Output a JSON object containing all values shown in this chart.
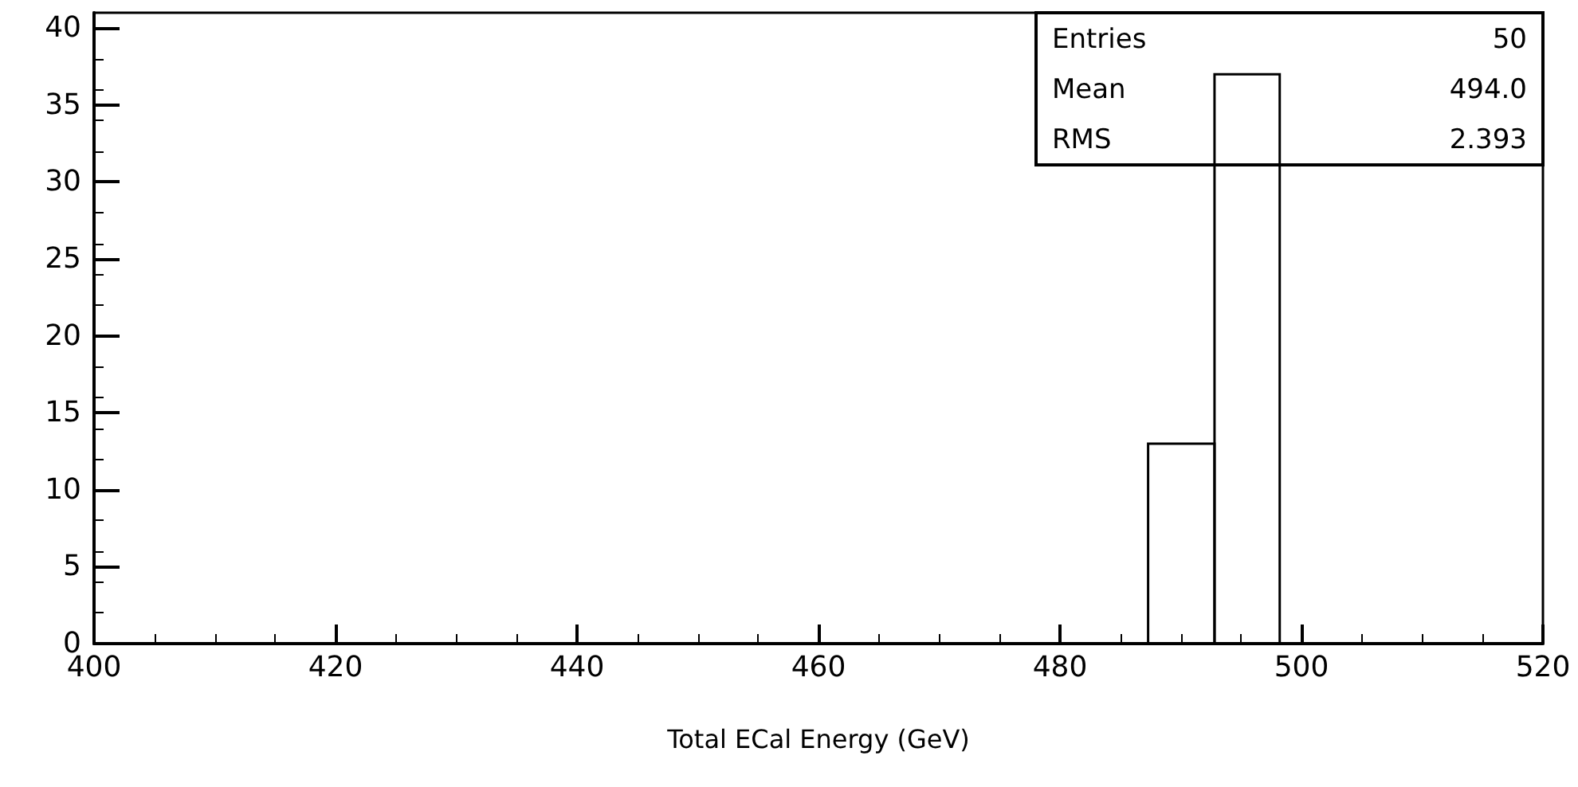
{
  "chart_data": {
    "type": "histogram",
    "xlabel": "Total ECal Energy (GeV)",
    "bins": [
      487.3,
      492.8,
      498.2
    ],
    "values": [
      13,
      37
    ],
    "color": "#000000",
    "xlim": [
      400,
      520
    ],
    "xticks": [
      400,
      420,
      440,
      460,
      480,
      500,
      520
    ],
    "ylim": [
      0,
      41
    ],
    "yticks": [
      0,
      5,
      10,
      15,
      20,
      25,
      30,
      35,
      40
    ],
    "grid": false,
    "annotations": [
      "Entries",
      "50",
      "Mean",
      "494.0",
      "RMS",
      "2.393"
    ]
  }
}
